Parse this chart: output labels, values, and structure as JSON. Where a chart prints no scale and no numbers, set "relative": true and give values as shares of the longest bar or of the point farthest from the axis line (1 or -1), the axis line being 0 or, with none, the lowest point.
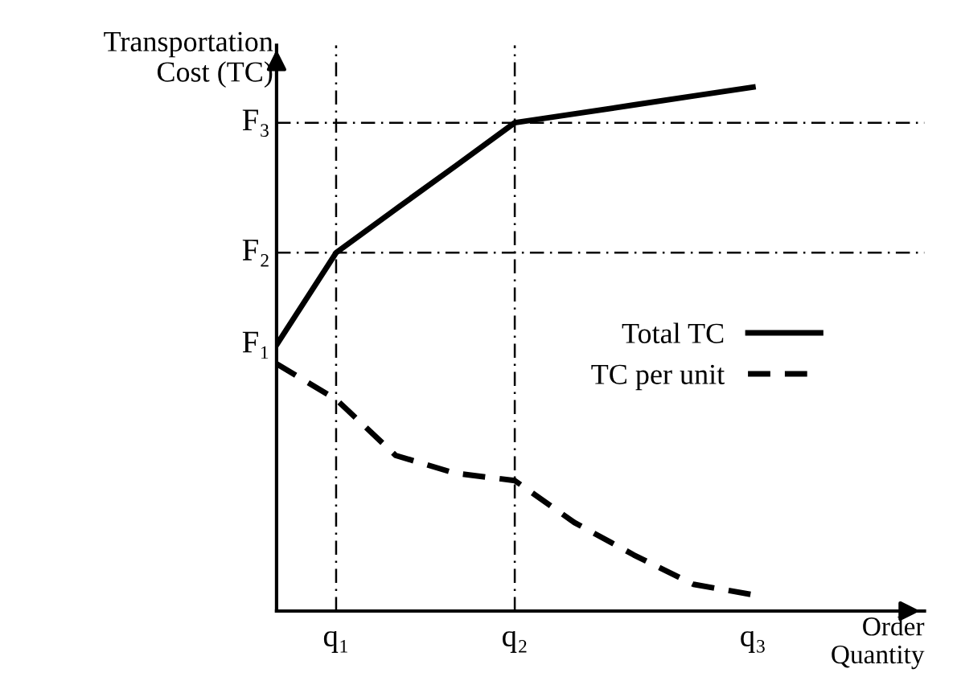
{
  "chart_data": {
    "type": "line",
    "relative": true,
    "xlabel": "Order\nQuantity",
    "ylabel": "Transportation\nCost (TC)",
    "categories": [
      null,
      "q₁",
      null,
      null,
      "q₂",
      null,
      null,
      null,
      "q₃"
    ],
    "series": [
      {
        "name": "Total TC",
        "color": "#000000",
        "line_style": "solid",
        "values": [
          0.508,
          0.684,
          0.767,
          0.849,
          0.932,
          0.949,
          0.966,
          0.983,
          1.0
        ]
      },
      {
        "name": "TC per unit",
        "color": "#000000",
        "line_style": "dashed",
        "values": [
          0.472,
          0.404,
          0.297,
          0.263,
          0.249,
          0.169,
          0.107,
          0.051,
          0.031
        ]
      }
    ],
    "ref_lines": [
      {
        "axis": "y",
        "value": 0.684,
        "label": "F₂",
        "color": "#000000",
        "line_style": "dashdot"
      },
      {
        "axis": "y",
        "value": 0.932,
        "label": "F₃",
        "color": "#000000",
        "line_style": "dashdot"
      },
      {
        "axis": "x",
        "value": "q₁",
        "label": null,
        "color": "#000000",
        "line_style": "dashdot"
      },
      {
        "axis": "x",
        "value": "q₂",
        "label": null,
        "color": "#000000",
        "line_style": "dashdot"
      }
    ],
    "annotations": [
      "F₁"
    ],
    "legend": "right",
    "marker": "none"
  }
}
